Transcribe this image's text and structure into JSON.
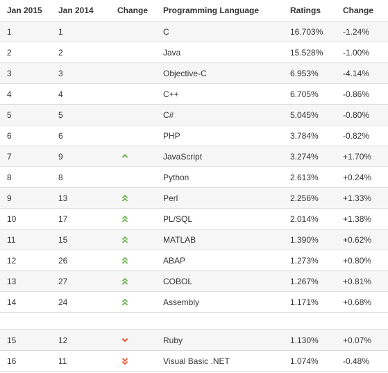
{
  "headers": [
    "Jan 2015",
    "Jan 2014",
    "Change",
    "Programming Language",
    "Ratings",
    "Change"
  ],
  "colors": {
    "up": "#6ab04c",
    "down": "#e34c26"
  },
  "rows_top": [
    {
      "jan2015": "1",
      "jan2014": "1",
      "change_icon": "",
      "language": "C",
      "rating": "16.703%",
      "change": "-1.24%"
    },
    {
      "jan2015": "2",
      "jan2014": "2",
      "change_icon": "",
      "language": "Java",
      "rating": "15.528%",
      "change": "-1.00%"
    },
    {
      "jan2015": "3",
      "jan2014": "3",
      "change_icon": "",
      "language": "Objective-C",
      "rating": "6.953%",
      "change": "-4.14%"
    },
    {
      "jan2015": "4",
      "jan2014": "4",
      "change_icon": "",
      "language": "C++",
      "rating": "6.705%",
      "change": "-0.86%"
    },
    {
      "jan2015": "5",
      "jan2014": "5",
      "change_icon": "",
      "language": "C#",
      "rating": "5.045%",
      "change": "-0.80%"
    },
    {
      "jan2015": "6",
      "jan2014": "6",
      "change_icon": "",
      "language": "PHP",
      "rating": "3.784%",
      "change": "-0.82%"
    },
    {
      "jan2015": "7",
      "jan2014": "9",
      "change_icon": "chevron-up-icon",
      "language": "JavaScript",
      "rating": "3.274%",
      "change": "+1.70%"
    },
    {
      "jan2015": "8",
      "jan2014": "8",
      "change_icon": "",
      "language": "Python",
      "rating": "2.613%",
      "change": "+0.24%"
    },
    {
      "jan2015": "9",
      "jan2014": "13",
      "change_icon": "double-chevron-up-icon",
      "language": "Perl",
      "rating": "2.256%",
      "change": "+1.33%"
    },
    {
      "jan2015": "10",
      "jan2014": "17",
      "change_icon": "double-chevron-up-icon",
      "language": "PL/SQL",
      "rating": "2.014%",
      "change": "+1.38%"
    },
    {
      "jan2015": "11",
      "jan2014": "15",
      "change_icon": "double-chevron-up-icon",
      "language": "MATLAB",
      "rating": "1.390%",
      "change": "+0.62%"
    },
    {
      "jan2015": "12",
      "jan2014": "26",
      "change_icon": "double-chevron-up-icon",
      "language": "ABAP",
      "rating": "1.273%",
      "change": "+0.80%"
    },
    {
      "jan2015": "13",
      "jan2014": "27",
      "change_icon": "double-chevron-up-icon",
      "language": "COBOL",
      "rating": "1.267%",
      "change": "+0.81%"
    },
    {
      "jan2015": "14",
      "jan2014": "24",
      "change_icon": "double-chevron-up-icon",
      "language": "Assembly",
      "rating": "1.171%",
      "change": "+0.68%"
    }
  ],
  "rows_bottom": [
    {
      "jan2015": "15",
      "jan2014": "12",
      "change_icon": "chevron-down-icon",
      "language": "Ruby",
      "rating": "1.130%",
      "change": "+0.07%"
    },
    {
      "jan2015": "16",
      "jan2014": "11",
      "change_icon": "double-chevron-down-icon",
      "language": "Visual Basic .NET",
      "rating": "1.074%",
      "change": "-0.48%"
    }
  ]
}
